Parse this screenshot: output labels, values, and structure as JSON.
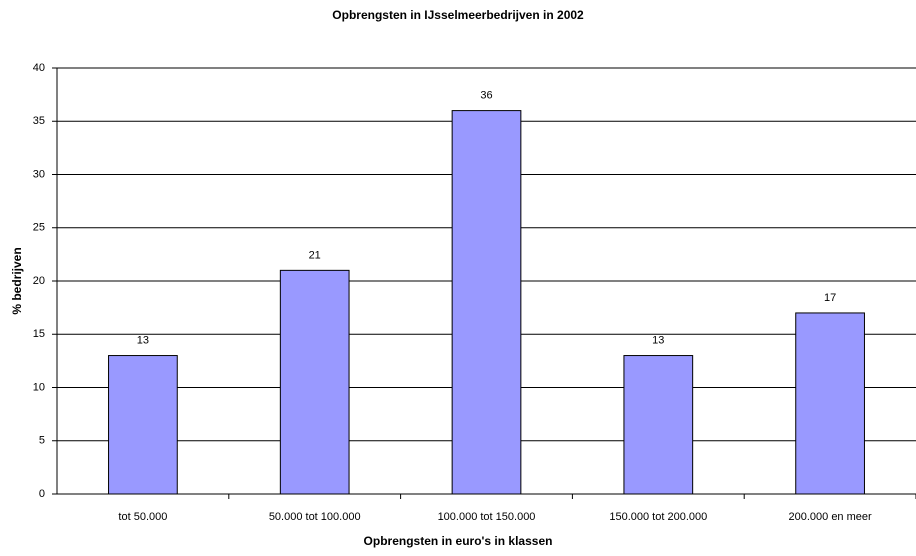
{
  "chart_data": {
    "type": "bar",
    "title": "Opbrengsten in IJsselmeerbedrijven in 2002",
    "x_label": "Opbrengsten in euro's in klassen",
    "y_label": "% bedrijven",
    "categories": [
      "tot 50.000",
      "50.000 tot 100.000",
      "100.000 tot 150.000",
      "150.000 tot 200.000",
      "200.000 en meer"
    ],
    "values": [
      13,
      21,
      36,
      13,
      17
    ],
    "color": "#9999ff",
    "ylim": [
      0,
      40
    ],
    "yticks": [
      0,
      5,
      10,
      15,
      20,
      25,
      30,
      35,
      40
    ],
    "grid": true
  }
}
